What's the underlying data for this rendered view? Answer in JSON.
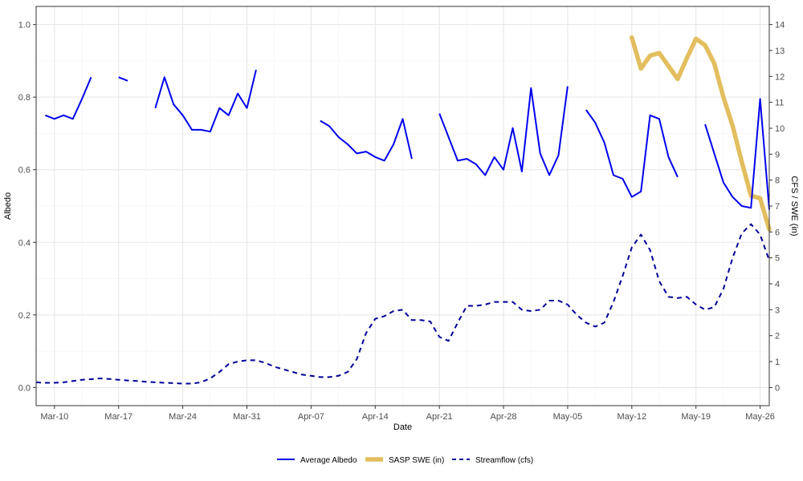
{
  "chart_data": {
    "type": "line",
    "xlabel": "Date",
    "ylabel_left": "Albedo",
    "ylabel_right": "CFS / SWE (in)",
    "x_range": [
      "2024-03-08",
      "2024-05-27"
    ],
    "x_ticks": [
      {
        "date": "2024-03-10",
        "label": "Mar-10"
      },
      {
        "date": "2024-03-17",
        "label": "Mar-17"
      },
      {
        "date": "2024-03-24",
        "label": "Mar-24"
      },
      {
        "date": "2024-03-31",
        "label": "Mar-31"
      },
      {
        "date": "2024-04-07",
        "label": "Apr-07"
      },
      {
        "date": "2024-04-14",
        "label": "Apr-14"
      },
      {
        "date": "2024-04-21",
        "label": "Apr-21"
      },
      {
        "date": "2024-04-28",
        "label": "Apr-28"
      },
      {
        "date": "2024-05-05",
        "label": "May-05"
      },
      {
        "date": "2024-05-12",
        "label": "May-12"
      },
      {
        "date": "2024-05-19",
        "label": "May-19"
      },
      {
        "date": "2024-05-26",
        "label": "May-26"
      }
    ],
    "ylim_left": [
      -0.05,
      1.05
    ],
    "yticks_left": [
      "0.0",
      "0.2",
      "0.4",
      "0.6",
      "0.8",
      "1.0"
    ],
    "ylim_right": [
      -0.7,
      14.7
    ],
    "yticks_right": [
      "0",
      "1",
      "2",
      "3",
      "4",
      "5",
      "6",
      "7",
      "8",
      "9",
      "10",
      "11",
      "12",
      "13",
      "14"
    ],
    "grid": true,
    "legend_position": "bottom",
    "series": [
      {
        "name": "Average Albedo",
        "axis": "left",
        "color": "#0000EE",
        "style": "solid",
        "segments": [
          [
            [
              "2024-03-09",
              0.75
            ],
            [
              "2024-03-10",
              0.74
            ],
            [
              "2024-03-11",
              0.75
            ],
            [
              "2024-03-12",
              0.74
            ],
            [
              "2024-03-13",
              0.795
            ],
            [
              "2024-03-14",
              0.855
            ]
          ],
          [
            [
              "2024-03-17",
              0.855
            ],
            [
              "2024-03-18",
              0.845
            ]
          ],
          [
            [
              "2024-03-21",
              0.77
            ],
            [
              "2024-03-22",
              0.855
            ],
            [
              "2024-03-23",
              0.78
            ],
            [
              "2024-03-24",
              0.75
            ],
            [
              "2024-03-25",
              0.71
            ],
            [
              "2024-03-26",
              0.71
            ],
            [
              "2024-03-27",
              0.705
            ],
            [
              "2024-03-28",
              0.77
            ],
            [
              "2024-03-29",
              0.75
            ],
            [
              "2024-03-30",
              0.81
            ],
            [
              "2024-03-31",
              0.77
            ],
            [
              "2024-04-01",
              0.875
            ]
          ],
          [
            [
              "2024-04-08",
              0.735
            ],
            [
              "2024-04-09",
              0.72
            ],
            [
              "2024-04-10",
              0.69
            ],
            [
              "2024-04-11",
              0.67
            ],
            [
              "2024-04-12",
              0.645
            ],
            [
              "2024-04-13",
              0.65
            ],
            [
              "2024-04-14",
              0.635
            ],
            [
              "2024-04-15",
              0.625
            ],
            [
              "2024-04-16",
              0.67
            ],
            [
              "2024-04-17",
              0.74
            ],
            [
              "2024-04-18",
              0.63
            ]
          ],
          [
            [
              "2024-04-21",
              0.755
            ],
            [
              "2024-04-22",
              0.69
            ],
            [
              "2024-04-23",
              0.625
            ],
            [
              "2024-04-24",
              0.63
            ],
            [
              "2024-04-25",
              0.615
            ],
            [
              "2024-04-26",
              0.585
            ],
            [
              "2024-04-27",
              0.635
            ],
            [
              "2024-04-28",
              0.6
            ],
            [
              "2024-04-29",
              0.715
            ],
            [
              "2024-04-30",
              0.595
            ],
            [
              "2024-05-01",
              0.825
            ],
            [
              "2024-05-02",
              0.645
            ],
            [
              "2024-05-03",
              0.585
            ],
            [
              "2024-05-04",
              0.64
            ],
            [
              "2024-05-05",
              0.83
            ]
          ],
          [
            [
              "2024-05-07",
              0.765
            ],
            [
              "2024-05-08",
              0.73
            ],
            [
              "2024-05-09",
              0.675
            ],
            [
              "2024-05-10",
              0.585
            ],
            [
              "2024-05-11",
              0.575
            ],
            [
              "2024-05-12",
              0.525
            ],
            [
              "2024-05-13",
              0.54
            ],
            [
              "2024-05-14",
              0.75
            ],
            [
              "2024-05-15",
              0.74
            ],
            [
              "2024-05-16",
              0.635
            ],
            [
              "2024-05-17",
              0.58
            ]
          ],
          [
            [
              "2024-05-20",
              0.725
            ],
            [
              "2024-05-21",
              0.645
            ],
            [
              "2024-05-22",
              0.565
            ],
            [
              "2024-05-23",
              0.525
            ],
            [
              "2024-05-24",
              0.5
            ],
            [
              "2024-05-25",
              0.495
            ],
            [
              "2024-05-26",
              0.795
            ],
            [
              "2024-05-27",
              0.49
            ]
          ]
        ]
      },
      {
        "name": "SASP SWE (in)",
        "axis": "right",
        "color": "#E3BE5E",
        "style": "thick",
        "segments": [
          [
            [
              "2024-05-12",
              13.5
            ],
            [
              "2024-05-13",
              12.3
            ],
            [
              "2024-05-14",
              12.8
            ],
            [
              "2024-05-15",
              12.9
            ],
            [
              "2024-05-16",
              12.4
            ],
            [
              "2024-05-17",
              11.9
            ],
            [
              "2024-05-18",
              12.7
            ],
            [
              "2024-05-19",
              13.45
            ],
            [
              "2024-05-20",
              13.2
            ],
            [
              "2024-05-21",
              12.5
            ],
            [
              "2024-05-22",
              11.2
            ],
            [
              "2024-05-23",
              10.1
            ],
            [
              "2024-05-24",
              8.7
            ],
            [
              "2024-05-25",
              7.4
            ],
            [
              "2024-05-26",
              7.3
            ],
            [
              "2024-05-27",
              6.1
            ]
          ]
        ]
      },
      {
        "name": "Streamflow (cfs)",
        "axis": "right",
        "color": "#000099",
        "style": "dashed",
        "segments": [
          [
            [
              "2024-03-08",
              0.2
            ],
            [
              "2024-03-09",
              0.18
            ],
            [
              "2024-03-10",
              0.18
            ],
            [
              "2024-03-11",
              0.2
            ],
            [
              "2024-03-12",
              0.25
            ],
            [
              "2024-03-13",
              0.3
            ],
            [
              "2024-03-14",
              0.32
            ],
            [
              "2024-03-15",
              0.35
            ],
            [
              "2024-03-16",
              0.33
            ],
            [
              "2024-03-17",
              0.3
            ],
            [
              "2024-03-18",
              0.27
            ],
            [
              "2024-03-19",
              0.25
            ],
            [
              "2024-03-20",
              0.22
            ],
            [
              "2024-03-21",
              0.2
            ],
            [
              "2024-03-22",
              0.18
            ],
            [
              "2024-03-23",
              0.17
            ],
            [
              "2024-03-24",
              0.15
            ],
            [
              "2024-03-25",
              0.15
            ],
            [
              "2024-03-26",
              0.2
            ],
            [
              "2024-03-27",
              0.35
            ],
            [
              "2024-03-28",
              0.6
            ],
            [
              "2024-03-29",
              0.9
            ],
            [
              "2024-03-30",
              1.0
            ],
            [
              "2024-03-31",
              1.05
            ],
            [
              "2024-04-01",
              1.05
            ],
            [
              "2024-04-02",
              0.95
            ],
            [
              "2024-04-03",
              0.8
            ],
            [
              "2024-04-04",
              0.7
            ],
            [
              "2024-04-05",
              0.6
            ],
            [
              "2024-04-06",
              0.5
            ],
            [
              "2024-04-07",
              0.45
            ],
            [
              "2024-04-08",
              0.4
            ],
            [
              "2024-04-09",
              0.4
            ],
            [
              "2024-04-10",
              0.45
            ],
            [
              "2024-04-11",
              0.6
            ],
            [
              "2024-04-12",
              1.1
            ],
            [
              "2024-04-13",
              2.1
            ],
            [
              "2024-04-14",
              2.65
            ],
            [
              "2024-04-15",
              2.75
            ],
            [
              "2024-04-16",
              2.95
            ],
            [
              "2024-04-17",
              3.0
            ],
            [
              "2024-04-18",
              2.6
            ],
            [
              "2024-04-19",
              2.6
            ],
            [
              "2024-04-20",
              2.55
            ],
            [
              "2024-04-21",
              1.95
            ],
            [
              "2024-04-22",
              1.8
            ],
            [
              "2024-04-23",
              2.5
            ],
            [
              "2024-04-24",
              3.15
            ],
            [
              "2024-04-25",
              3.15
            ],
            [
              "2024-04-26",
              3.2
            ],
            [
              "2024-04-27",
              3.3
            ],
            [
              "2024-04-28",
              3.3
            ],
            [
              "2024-04-29",
              3.3
            ],
            [
              "2024-04-30",
              3.0
            ],
            [
              "2024-05-01",
              2.95
            ],
            [
              "2024-05-02",
              3.0
            ],
            [
              "2024-05-03",
              3.35
            ],
            [
              "2024-05-04",
              3.35
            ],
            [
              "2024-05-05",
              3.2
            ],
            [
              "2024-05-06",
              2.8
            ],
            [
              "2024-05-07",
              2.5
            ],
            [
              "2024-05-08",
              2.35
            ],
            [
              "2024-05-09",
              2.5
            ],
            [
              "2024-05-10",
              3.3
            ],
            [
              "2024-05-11",
              4.3
            ],
            [
              "2024-05-12",
              5.4
            ],
            [
              "2024-05-13",
              5.9
            ],
            [
              "2024-05-14",
              5.3
            ],
            [
              "2024-05-15",
              4.1
            ],
            [
              "2024-05-16",
              3.5
            ],
            [
              "2024-05-17",
              3.45
            ],
            [
              "2024-05-18",
              3.5
            ],
            [
              "2024-05-19",
              3.2
            ],
            [
              "2024-05-20",
              3.0
            ],
            [
              "2024-05-21",
              3.1
            ],
            [
              "2024-05-22",
              3.8
            ],
            [
              "2024-05-23",
              5.0
            ],
            [
              "2024-05-24",
              5.95
            ],
            [
              "2024-05-25",
              6.3
            ],
            [
              "2024-05-26",
              5.9
            ],
            [
              "2024-05-27",
              4.9
            ]
          ]
        ]
      }
    ]
  }
}
